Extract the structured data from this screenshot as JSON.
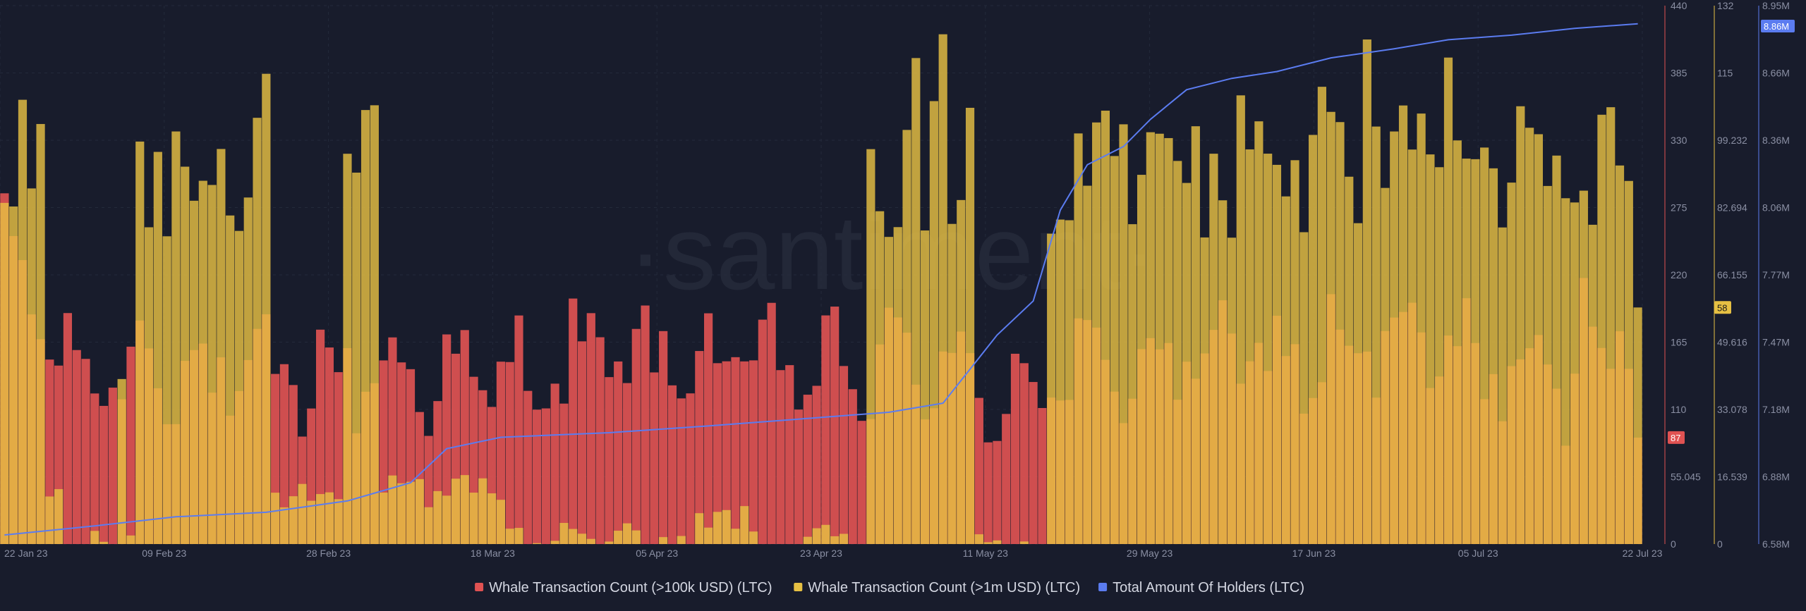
{
  "watermark": "·santiment·",
  "chart_data": {
    "type": "bar",
    "x_axis": {
      "ticks": [
        "22 Jan 23",
        "09 Feb 23",
        "28 Feb 23",
        "18 Mar 23",
        "05 Apr 23",
        "23 Apr 23",
        "11 May 23",
        "29 May 23",
        "17 Jun 23",
        "05 Jul 23",
        "22 Jul 23"
      ],
      "start": "2023-01-22",
      "end": "2023-07-22"
    },
    "y_axes": [
      {
        "id": "y_100k",
        "color": "#e05252",
        "range": [
          0,
          440
        ],
        "ticks": [
          "0",
          "55.045",
          "110",
          "165",
          "220",
          "275",
          "330",
          "385",
          "440"
        ]
      },
      {
        "id": "y_1m",
        "color": "#e6c043",
        "range": [
          0,
          132
        ],
        "ticks": [
          "0",
          "16.539",
          "33.078",
          "49.616",
          "66.155",
          "82.694",
          "99.232",
          "115",
          "132"
        ]
      },
      {
        "id": "y_holders",
        "color": "#5b7cf0",
        "range": [
          6580000,
          8950000
        ],
        "ticks": [
          "6.58M",
          "6.88M",
          "7.18M",
          "7.47M",
          "7.77M",
          "8.06M",
          "8.36M",
          "8.66M",
          "8.95M"
        ]
      }
    ],
    "series": [
      {
        "name": "Whale Transaction Count (>100k USD) (LTC)",
        "kind": "bar",
        "axis": "y_100k",
        "color": "#e05252",
        "last_value": "87",
        "weekly_avg": [
          160,
          140,
          150,
          130,
          135,
          140,
          140,
          135,
          140,
          155,
          150,
          150,
          145,
          140,
          150,
          125,
          135,
          140,
          150,
          155,
          150,
          160,
          160,
          150,
          130,
          175,
          165,
          205,
          235,
          215,
          215,
          200,
          180,
          195,
          180,
          190,
          195,
          180,
          175,
          190,
          200,
          220,
          190,
          180,
          175,
          185,
          180,
          185,
          160,
          175,
          180,
          160,
          160,
          160
        ],
        "day_of_week_effect": [
          20,
          25,
          15,
          -5,
          -25,
          -30,
          0
        ]
      },
      {
        "name": "Whale Transaction Count (>1m USD) (LTC)",
        "kind": "bar",
        "axis": "y_1m",
        "color": "#e6c043",
        "last_value": "58",
        "weekly_avg": [
          70,
          4,
          2,
          3,
          75,
          85,
          80,
          80,
          2,
          3,
          3,
          30,
          2,
          2,
          2,
          2,
          2,
          2,
          2,
          2,
          3,
          3,
          2,
          3,
          2,
          2,
          2,
          3,
          2,
          3,
          55,
          60,
          68,
          50,
          80,
          92,
          94,
          94,
          90,
          92,
          94,
          94,
          92,
          92,
          93,
          90,
          92,
          94,
          92,
          93,
          92,
          94,
          94,
          92,
          90
        ],
        "spike_ranges": [
          [
            "2023-01-22",
            "2023-01-26"
          ],
          [
            "2023-02-06",
            "2023-02-20"
          ],
          [
            "2023-03-01",
            "2023-03-04"
          ],
          [
            "2023-04-28",
            "2023-05-09"
          ],
          [
            "2023-05-18",
            "2023-07-22"
          ]
        ],
        "spike_value": 92
      },
      {
        "name": "Total Amount Of Holders (LTC)",
        "kind": "line",
        "axis": "y_holders",
        "color": "#5b7cf0",
        "last_value": "8.86M",
        "points": [
          [
            "2023-01-22",
            6620000
          ],
          [
            "2023-02-01",
            6660000
          ],
          [
            "2023-02-10",
            6700000
          ],
          [
            "2023-02-20",
            6720000
          ],
          [
            "2023-03-01",
            6770000
          ],
          [
            "2023-03-08",
            6850000
          ],
          [
            "2023-03-12",
            7000000
          ],
          [
            "2023-03-18",
            7050000
          ],
          [
            "2023-03-30",
            7070000
          ],
          [
            "2023-04-10",
            7100000
          ],
          [
            "2023-04-20",
            7130000
          ],
          [
            "2023-04-30",
            7160000
          ],
          [
            "2023-05-06",
            7200000
          ],
          [
            "2023-05-09",
            7350000
          ],
          [
            "2023-05-12",
            7500000
          ],
          [
            "2023-05-16",
            7650000
          ],
          [
            "2023-05-19",
            8050000
          ],
          [
            "2023-05-22",
            8250000
          ],
          [
            "2023-05-26",
            8330000
          ],
          [
            "2023-05-29",
            8450000
          ],
          [
            "2023-06-02",
            8580000
          ],
          [
            "2023-06-07",
            8630000
          ],
          [
            "2023-06-12",
            8660000
          ],
          [
            "2023-06-18",
            8720000
          ],
          [
            "2023-06-25",
            8760000
          ],
          [
            "2023-07-01",
            8800000
          ],
          [
            "2023-07-08",
            8820000
          ],
          [
            "2023-07-15",
            8850000
          ],
          [
            "2023-07-22",
            8870000
          ]
        ]
      }
    ],
    "legend_position": "bottom-center",
    "grid": true
  }
}
